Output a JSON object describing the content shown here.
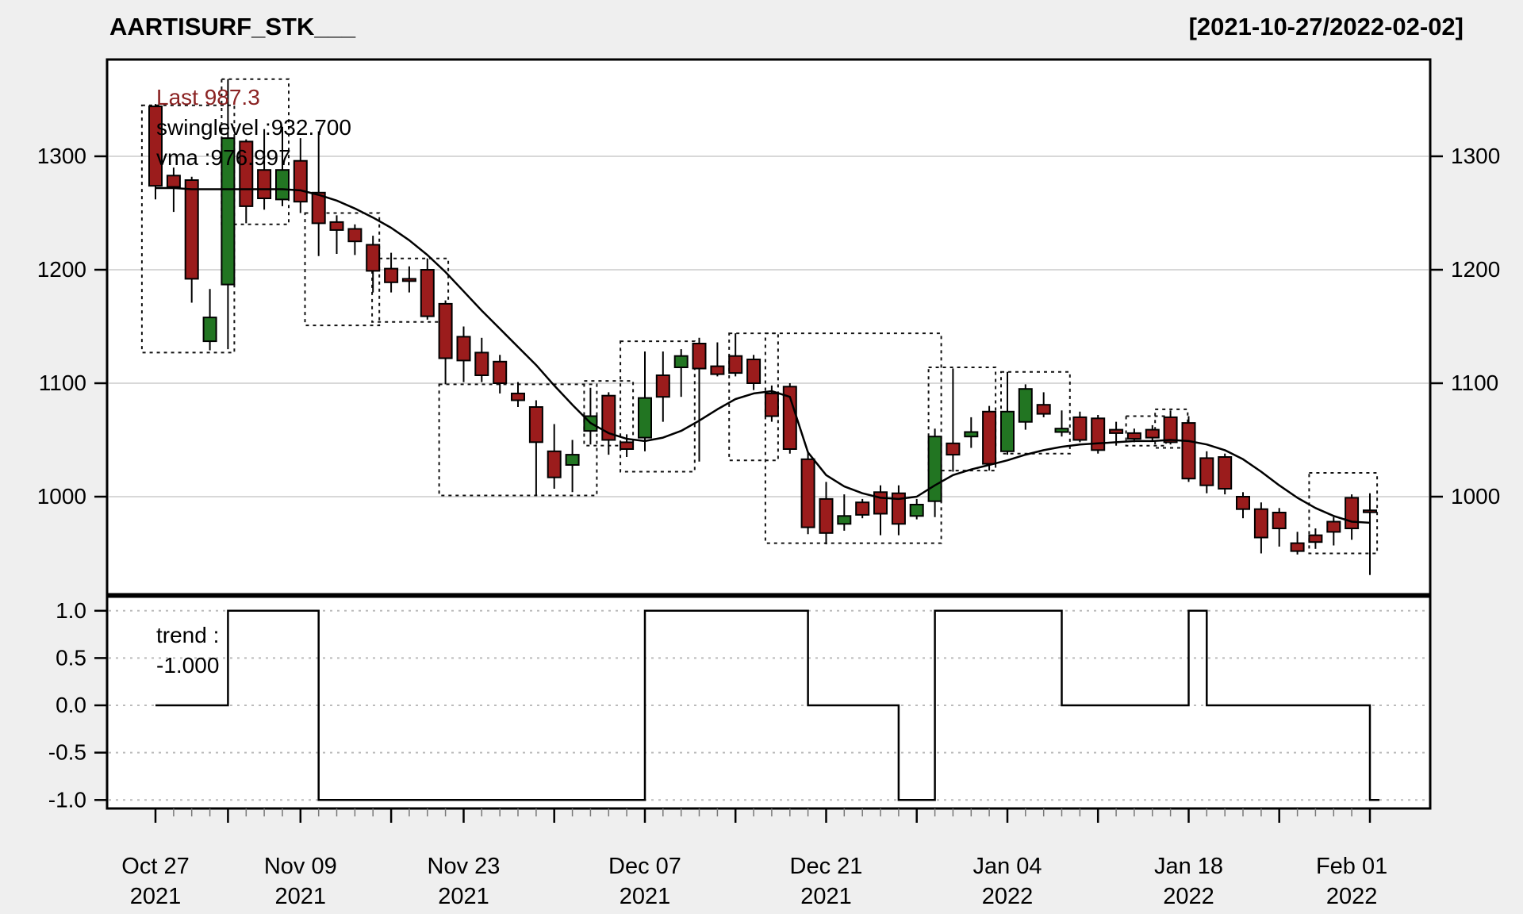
{
  "header": {
    "title": "AARTISURF_STK___",
    "date_range": "[2021-10-27/2022-02-02]"
  },
  "annotations": {
    "last": "Last 987.3",
    "swinglevel": "swinglevel :932.700",
    "vma": "vma :976.997",
    "trend_line1": "trend :",
    "trend_line2": "-1.000"
  },
  "colors": {
    "up_candle": "#227522",
    "down_candle": "#9B1C1C",
    "candle_border": "#000000",
    "ma_line": "#000000",
    "last_text": "#8B2323",
    "grid_main": "#D8D8D8",
    "grid_trend": "#BBBBBB",
    "background": "#EFEFEF",
    "plot_background": "#FFFFFF",
    "minor_tick": "#777777",
    "major_tick": "#000000"
  },
  "chart_data": [
    {
      "type": "candlestick",
      "title": "AARTISURF_STK___",
      "subtitle": "[2021-10-27/2022-02-02]",
      "ylabel": "",
      "xlabel": "",
      "ylim": [
        914,
        1385
      ],
      "grid": true,
      "y_ticks": [
        1000,
        1100,
        1200,
        1300
      ],
      "y_tick_labels": [
        "1000",
        "1100",
        "1200",
        "1300"
      ],
      "x_tick_labels": [
        {
          "idx": 0,
          "line1": "Oct 27",
          "line2": "2021"
        },
        {
          "idx": 8,
          "line1": "Nov 09",
          "line2": "2021"
        },
        {
          "idx": 17,
          "line1": "Nov 23",
          "line2": "2021"
        },
        {
          "idx": 27,
          "line1": "Dec 07",
          "line2": "2021"
        },
        {
          "idx": 37,
          "line1": "Dec 21",
          "line2": "2021"
        },
        {
          "idx": 47,
          "line1": "Jan 04",
          "line2": "2022"
        },
        {
          "idx": 57,
          "line1": "Jan 18",
          "line2": "2022"
        },
        {
          "idx": 66,
          "line1": "Feb 01",
          "line2": "2022"
        }
      ],
      "major_tick_idx": [
        0,
        4,
        8,
        13,
        17,
        22,
        27,
        32,
        37,
        42,
        47,
        52,
        57,
        62,
        67
      ],
      "dates": [
        "Oct 27",
        "Oct 28",
        "Oct 29",
        "Nov 01",
        "Nov 02",
        "Nov 03",
        "Nov 04",
        "Nov 08",
        "Nov 09",
        "Nov 10",
        "Nov 11",
        "Nov 12",
        "Nov 15",
        "Nov 16",
        "Nov 17",
        "Nov 18",
        "Nov 22",
        "Nov 23",
        "Nov 24",
        "Nov 25",
        "Nov 26",
        "Nov 29",
        "Nov 30",
        "Dec 01",
        "Dec 02",
        "Dec 03",
        "Dec 06",
        "Dec 07",
        "Dec 08",
        "Dec 09",
        "Dec 10",
        "Dec 13",
        "Dec 14",
        "Dec 15",
        "Dec 16",
        "Dec 17",
        "Dec 20",
        "Dec 21",
        "Dec 22",
        "Dec 23",
        "Dec 24",
        "Dec 27",
        "Dec 28",
        "Dec 29",
        "Dec 30",
        "Dec 31",
        "Jan 03",
        "Jan 04",
        "Jan 05",
        "Jan 06",
        "Jan 07",
        "Jan 10",
        "Jan 11",
        "Jan 12",
        "Jan 13",
        "Jan 14",
        "Jan 17",
        "Jan 18",
        "Jan 19",
        "Jan 20",
        "Jan 21",
        "Jan 24",
        "Jan 25",
        "Jan 27",
        "Jan 28",
        "Jan 31",
        "Feb 01",
        "Feb 02"
      ],
      "ohlc": [
        [
          1344,
          1346,
          1262,
          1274
        ],
        [
          1283,
          1290,
          1251,
          1273
        ],
        [
          1279,
          1282,
          1171,
          1192
        ],
        [
          1137,
          1183,
          1129,
          1158
        ],
        [
          1187,
          1368,
          1130,
          1316
        ],
        [
          1313,
          1315,
          1241,
          1256
        ],
        [
          1288,
          1324,
          1253,
          1263
        ],
        [
          1262,
          1326,
          1256,
          1288
        ],
        [
          1296,
          1316,
          1250,
          1260
        ],
        [
          1268,
          1322,
          1212,
          1241
        ],
        [
          1242,
          1248,
          1214,
          1235
        ],
        [
          1236,
          1240,
          1213,
          1225
        ],
        [
          1222,
          1230,
          1180,
          1199
        ],
        [
          1201,
          1215,
          1180,
          1189
        ],
        [
          1192,
          1203,
          1180,
          1190
        ],
        [
          1200,
          1210,
          1156,
          1159
        ],
        [
          1170,
          1173,
          1099,
          1122
        ],
        [
          1141,
          1150,
          1101,
          1120
        ],
        [
          1127,
          1140,
          1101,
          1107
        ],
        [
          1119,
          1125,
          1091,
          1100
        ],
        [
          1091,
          1101,
          1079,
          1085
        ],
        [
          1079,
          1085,
          1001,
          1048
        ],
        [
          1040,
          1064,
          1007,
          1017
        ],
        [
          1028,
          1050,
          1004,
          1037
        ],
        [
          1058,
          1096,
          1046,
          1071
        ],
        [
          1089,
          1092,
          1037,
          1050
        ],
        [
          1048,
          1055,
          1035,
          1042
        ],
        [
          1052,
          1128,
          1040,
          1087
        ],
        [
          1107,
          1128,
          1066,
          1088
        ],
        [
          1114,
          1130,
          1088,
          1124
        ],
        [
          1135,
          1140,
          1031,
          1113
        ],
        [
          1115,
          1136,
          1106,
          1108
        ],
        [
          1124,
          1144,
          1106,
          1109
        ],
        [
          1121,
          1125,
          1094,
          1100
        ],
        [
          1091,
          1098,
          1066,
          1071
        ],
        [
          1097,
          1100,
          1038,
          1042
        ],
        [
          1033,
          1040,
          967,
          973
        ],
        [
          998,
          1013,
          958,
          968
        ],
        [
          976,
          1002,
          970,
          983
        ],
        [
          995,
          998,
          981,
          984
        ],
        [
          1004,
          1010,
          966,
          985
        ],
        [
          1003,
          1010,
          966,
          976
        ],
        [
          983,
          998,
          980,
          993
        ],
        [
          996,
          1060,
          982,
          1053
        ],
        [
          1047,
          1113,
          1022,
          1037
        ],
        [
          1053,
          1070,
          1043,
          1057
        ],
        [
          1075,
          1080,
          1023,
          1029
        ],
        [
          1040,
          1110,
          1037,
          1075
        ],
        [
          1066,
          1099,
          1059,
          1095
        ],
        [
          1081,
          1092,
          1070,
          1073
        ],
        [
          1057,
          1076,
          1053,
          1060
        ],
        [
          1070,
          1075,
          1048,
          1050
        ],
        [
          1069,
          1072,
          1038,
          1041
        ],
        [
          1059,
          1066,
          1045,
          1056
        ],
        [
          1056,
          1060,
          1048,
          1051
        ],
        [
          1059,
          1063,
          1049,
          1052
        ],
        [
          1070,
          1076,
          1046,
          1048
        ],
        [
          1065,
          1071,
          1013,
          1016
        ],
        [
          1034,
          1040,
          1003,
          1010
        ],
        [
          1035,
          1038,
          1002,
          1007
        ],
        [
          1000,
          1004,
          981,
          989
        ],
        [
          989,
          995,
          950,
          964
        ],
        [
          986,
          990,
          956,
          972
        ],
        [
          959,
          969,
          949,
          952
        ],
        [
          966,
          972,
          954,
          960
        ],
        [
          978,
          982,
          957,
          969
        ],
        [
          999,
          1002,
          962,
          972
        ],
        [
          988,
          1003,
          931,
          987.3
        ]
      ],
      "vma": [
        1272,
        1272,
        1271,
        1271,
        1271,
        1271,
        1271,
        1271,
        1270,
        1266,
        1261,
        1254,
        1246,
        1237,
        1226,
        1213,
        1198,
        1181,
        1164,
        1148,
        1132,
        1116,
        1098,
        1081,
        1065,
        1056,
        1051,
        1049,
        1052,
        1058,
        1067,
        1077,
        1086,
        1091,
        1093,
        1088,
        1039,
        1019,
        1009,
        1003,
        999,
        998,
        1000,
        1010,
        1019,
        1024,
        1028,
        1032,
        1037,
        1041,
        1044,
        1046,
        1047,
        1048,
        1049,
        1049,
        1050,
        1049,
        1046,
        1041,
        1033,
        1022,
        1010,
        999,
        990,
        983,
        978,
        977
      ],
      "swing_boxes": [
        [
          -0.4,
          4.0,
          1127,
          1345
        ],
        [
          4.0,
          7.0,
          1240,
          1368
        ],
        [
          8.6,
          12.0,
          1151,
          1250
        ],
        [
          12.3,
          15.8,
          1154,
          1210
        ],
        [
          16.0,
          24.0,
          1001,
          1099
        ],
        [
          24.0,
          26.0,
          1045,
          1102
        ],
        [
          26.0,
          29.4,
          1022,
          1137
        ],
        [
          32.0,
          34.0,
          1032,
          1144
        ],
        [
          34.0,
          43.0,
          959,
          1144
        ],
        [
          43.0,
          46.0,
          1023,
          1114
        ],
        [
          47.0,
          50.1,
          1038,
          1110
        ],
        [
          53.9,
          55.4,
          1045,
          1071
        ],
        [
          55.5,
          56.6,
          1043,
          1077
        ],
        [
          64.0,
          67.05,
          950,
          1021
        ]
      ],
      "last_value": 987.3,
      "swinglevel_value": 932.7,
      "vma_last_value": 976.997
    },
    {
      "type": "step-line",
      "name": "trend",
      "last_value": -1.0,
      "ylim": [
        -1.1,
        1.1
      ],
      "y_ticks": [
        1.0,
        0.5,
        0.0,
        -0.5,
        -1.0
      ],
      "y_tick_labels": [
        "1.0",
        "0.5",
        "0.0",
        "-0.5",
        "-1.0"
      ],
      "values": [
        0,
        0,
        0,
        0,
        1,
        1,
        1,
        1,
        1,
        -1,
        -1,
        -1,
        -1,
        -1,
        -1,
        -1,
        -1,
        -1,
        -1,
        -1,
        -1,
        -1,
        -1,
        -1,
        -1,
        -1,
        -1,
        1,
        1,
        1,
        1,
        1,
        1,
        1,
        1,
        1,
        0,
        0,
        0,
        0,
        0,
        -1,
        -1,
        1,
        1,
        1,
        1,
        1,
        1,
        1,
        0,
        0,
        0,
        0,
        0,
        0,
        0,
        1,
        0,
        0,
        0,
        0,
        0,
        0,
        0,
        0,
        0,
        -1
      ]
    }
  ]
}
